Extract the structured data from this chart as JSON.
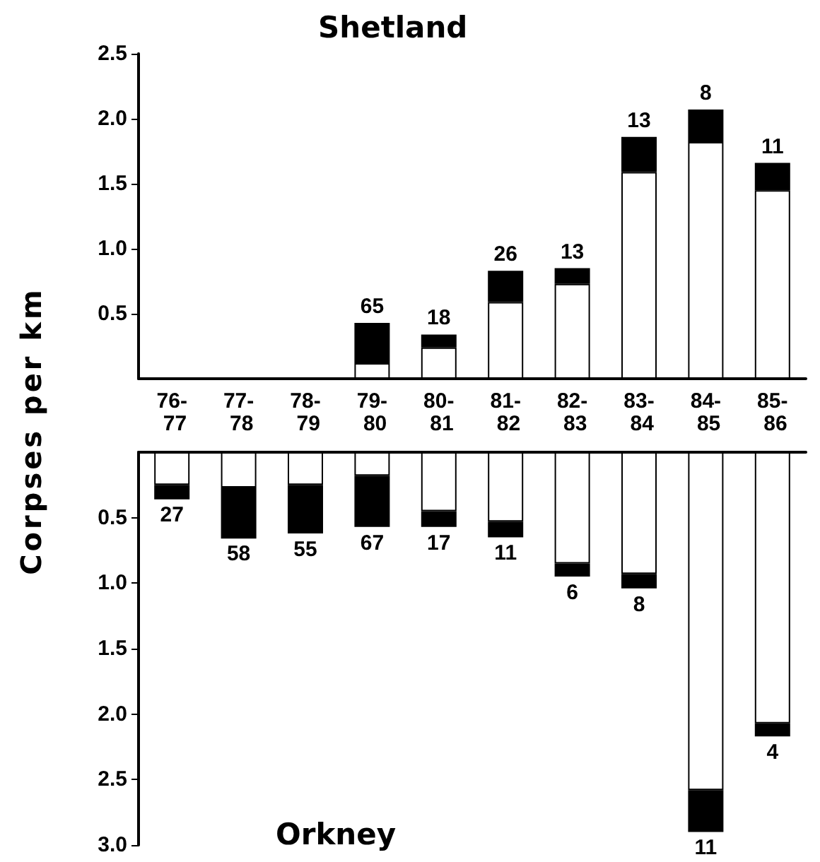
{
  "chart_data": [
    {
      "type": "bar",
      "title": "Shetland",
      "ylabel": "Corpses per km",
      "stacked": true,
      "categories": [
        "76-77",
        "77-78",
        "78-79",
        "79-80",
        "80-81",
        "81-82",
        "82-83",
        "83-84",
        "84-85",
        "85-86"
      ],
      "series": [
        {
          "color": "#ffffff",
          "values": [
            0,
            0,
            0,
            0.12,
            0.24,
            0.59,
            0.73,
            1.59,
            1.82,
            1.45
          ]
        },
        {
          "color": "#000000",
          "values": [
            0,
            0,
            0,
            0.31,
            0.1,
            0.24,
            0.12,
            0.27,
            0.25,
            0.21
          ]
        }
      ],
      "ylim": [
        0,
        2.5
      ],
      "yticks": [
        {
          "value": 0.5,
          "label": "0.5"
        },
        {
          "value": 1,
          "label": "1.0"
        },
        {
          "value": 1.5,
          "label": "1.5"
        },
        {
          "value": 2,
          "label": "2.0"
        },
        {
          "value": 2.5,
          "label": "2.5"
        }
      ],
      "annotations": [
        {
          "text": "65",
          "x": "79-80",
          "y": 0.43
        },
        {
          "text": "18",
          "x": "80-81",
          "y": 0.34
        },
        {
          "text": "26",
          "x": "81-82",
          "y": 0.83
        },
        {
          "text": "13",
          "x": "82-83",
          "y": 0.85
        },
        {
          "text": "13",
          "x": "83-84",
          "y": 1.86
        },
        {
          "text": "8",
          "x": "84-85",
          "y": 2.07
        },
        {
          "text": "11",
          "x": "85-86",
          "y": 1.66
        }
      ]
    },
    {
      "type": "bar",
      "title": "Orkney",
      "stacked": true,
      "tick_labels": "y",
      "categories": [
        "76-77",
        "77-78",
        "78-79",
        "79-80",
        "80-81",
        "81-82",
        "82-83",
        "83-84",
        "84-85",
        "85-86"
      ],
      "series": [
        {
          "color": "#ffffff",
          "values": [
            0.25,
            0.27,
            0.25,
            0.18,
            0.45,
            0.53,
            0.85,
            0.93,
            2.58,
            2.07
          ]
        },
        {
          "color": "#000000",
          "values": [
            0.11,
            0.39,
            0.37,
            0.39,
            0.12,
            0.12,
            0.1,
            0.11,
            0.32,
            0.1
          ]
        }
      ],
      "ylim": [
        3,
        0
      ],
      "yticks": [
        {
          "value": 0.5,
          "label": "0.5"
        },
        {
          "value": 1,
          "label": "1.0"
        },
        {
          "value": 1.5,
          "label": "1.5"
        },
        {
          "value": 2,
          "label": "2.0"
        },
        {
          "value": 2.5,
          "label": "2.5"
        },
        {
          "value": 3,
          "label": "3.0"
        }
      ],
      "annotations": [
        {
          "text": "27",
          "x": "76-77",
          "y": 0.355
        },
        {
          "text": "58",
          "x": "77-78",
          "y": 0.655
        },
        {
          "text": "55",
          "x": "78-79",
          "y": 0.62
        },
        {
          "text": "67",
          "x": "79-80",
          "y": 0.57
        },
        {
          "text": "17",
          "x": "80-81",
          "y": 0.57
        },
        {
          "text": "11",
          "x": "81-82",
          "y": 0.645
        },
        {
          "text": "6",
          "x": "82-83",
          "y": 0.95
        },
        {
          "text": "8",
          "x": "83-84",
          "y": 1.04
        },
        {
          "text": "11",
          "x": "84-85",
          "y": 2.9
        },
        {
          "text": "4",
          "x": "85-86",
          "y": 2.17
        }
      ]
    }
  ]
}
